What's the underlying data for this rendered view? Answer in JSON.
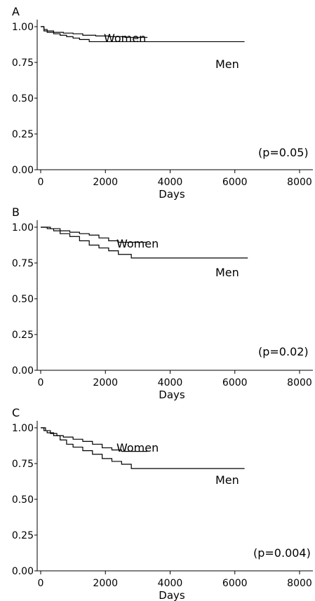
{
  "chart_data": [
    {
      "type": "line",
      "panel_label": "A",
      "xlabel": "Days",
      "ylabel": "",
      "xlim": [
        0,
        8000
      ],
      "ylim": [
        0,
        1
      ],
      "xticks": [
        0,
        2000,
        4000,
        6000,
        8000
      ],
      "xtick_labels": [
        "0",
        "2000",
        "4000",
        "6000",
        "8000"
      ],
      "yticks": [
        0,
        0.25,
        0.5,
        0.75,
        1
      ],
      "ytick_labels": [
        "0.00",
        "0.25",
        "0.50",
        "0.75",
        "1.00"
      ],
      "annotation": "(p=0.05)",
      "series": [
        {
          "name": "Women",
          "x": [
            0,
            100,
            200,
            400,
            700,
            1000,
            1300,
            1700,
            2100,
            2600,
            3300
          ],
          "y": [
            1.0,
            0.98,
            0.97,
            0.96,
            0.955,
            0.95,
            0.94,
            0.935,
            0.93,
            0.925,
            0.925
          ]
        },
        {
          "name": "Men",
          "x": [
            0,
            100,
            200,
            400,
            600,
            800,
            1000,
            1200,
            1500,
            2000,
            3000,
            4000,
            6300
          ],
          "y": [
            1.0,
            0.97,
            0.96,
            0.95,
            0.94,
            0.93,
            0.92,
            0.91,
            0.895,
            0.895,
            0.895,
            0.895,
            0.895
          ]
        }
      ]
    },
    {
      "type": "line",
      "panel_label": "B",
      "xlabel": "Days",
      "ylabel": "",
      "xlim": [
        0,
        8000
      ],
      "ylim": [
        0,
        1
      ],
      "xticks": [
        0,
        2000,
        4000,
        6000,
        8000
      ],
      "xtick_labels": [
        "0",
        "2000",
        "4000",
        "6000",
        "8000"
      ],
      "yticks": [
        0,
        0.25,
        0.5,
        0.75,
        1
      ],
      "ytick_labels": [
        "0.00",
        "0.25",
        "0.50",
        "0.75",
        "1.00"
      ],
      "annotation": "(p=0.02)",
      "series": [
        {
          "name": "Women",
          "x": [
            0,
            300,
            600,
            900,
            1200,
            1500,
            1800,
            2100,
            2400,
            3300
          ],
          "y": [
            1.0,
            0.99,
            0.975,
            0.965,
            0.955,
            0.945,
            0.925,
            0.905,
            0.895,
            0.895
          ]
        },
        {
          "name": "Men",
          "x": [
            0,
            200,
            400,
            600,
            900,
            1200,
            1500,
            1800,
            2100,
            2400,
            2800,
            4000,
            6400
          ],
          "y": [
            1.0,
            0.99,
            0.975,
            0.955,
            0.935,
            0.905,
            0.875,
            0.855,
            0.835,
            0.81,
            0.785,
            0.785,
            0.785
          ]
        }
      ]
    },
    {
      "type": "line",
      "panel_label": "C",
      "xlabel": "Days",
      "ylabel": "",
      "xlim": [
        0,
        8000
      ],
      "ylim": [
        0,
        1
      ],
      "xticks": [
        0,
        2000,
        4000,
        6000,
        8000
      ],
      "xtick_labels": [
        "0",
        "2000",
        "4000",
        "6000",
        "8000"
      ],
      "yticks": [
        0,
        0.25,
        0.5,
        0.75,
        1
      ],
      "ytick_labels": [
        "0.00",
        "0.25",
        "0.50",
        "0.75",
        "1.00"
      ],
      "annotation": "(p=0.004)",
      "series": [
        {
          "name": "Women",
          "x": [
            0,
            150,
            300,
            500,
            700,
            1000,
            1300,
            1600,
            1900,
            2200,
            2500,
            3300
          ],
          "y": [
            1.0,
            0.98,
            0.96,
            0.945,
            0.935,
            0.92,
            0.905,
            0.885,
            0.86,
            0.845,
            0.835,
            0.835
          ]
        },
        {
          "name": "Men",
          "x": [
            0,
            100,
            200,
            400,
            600,
            800,
            1000,
            1300,
            1600,
            1900,
            2200,
            2500,
            2800,
            4000,
            6300
          ],
          "y": [
            1.0,
            0.98,
            0.965,
            0.945,
            0.915,
            0.885,
            0.865,
            0.84,
            0.815,
            0.785,
            0.765,
            0.745,
            0.715,
            0.715,
            0.715
          ]
        }
      ]
    }
  ]
}
